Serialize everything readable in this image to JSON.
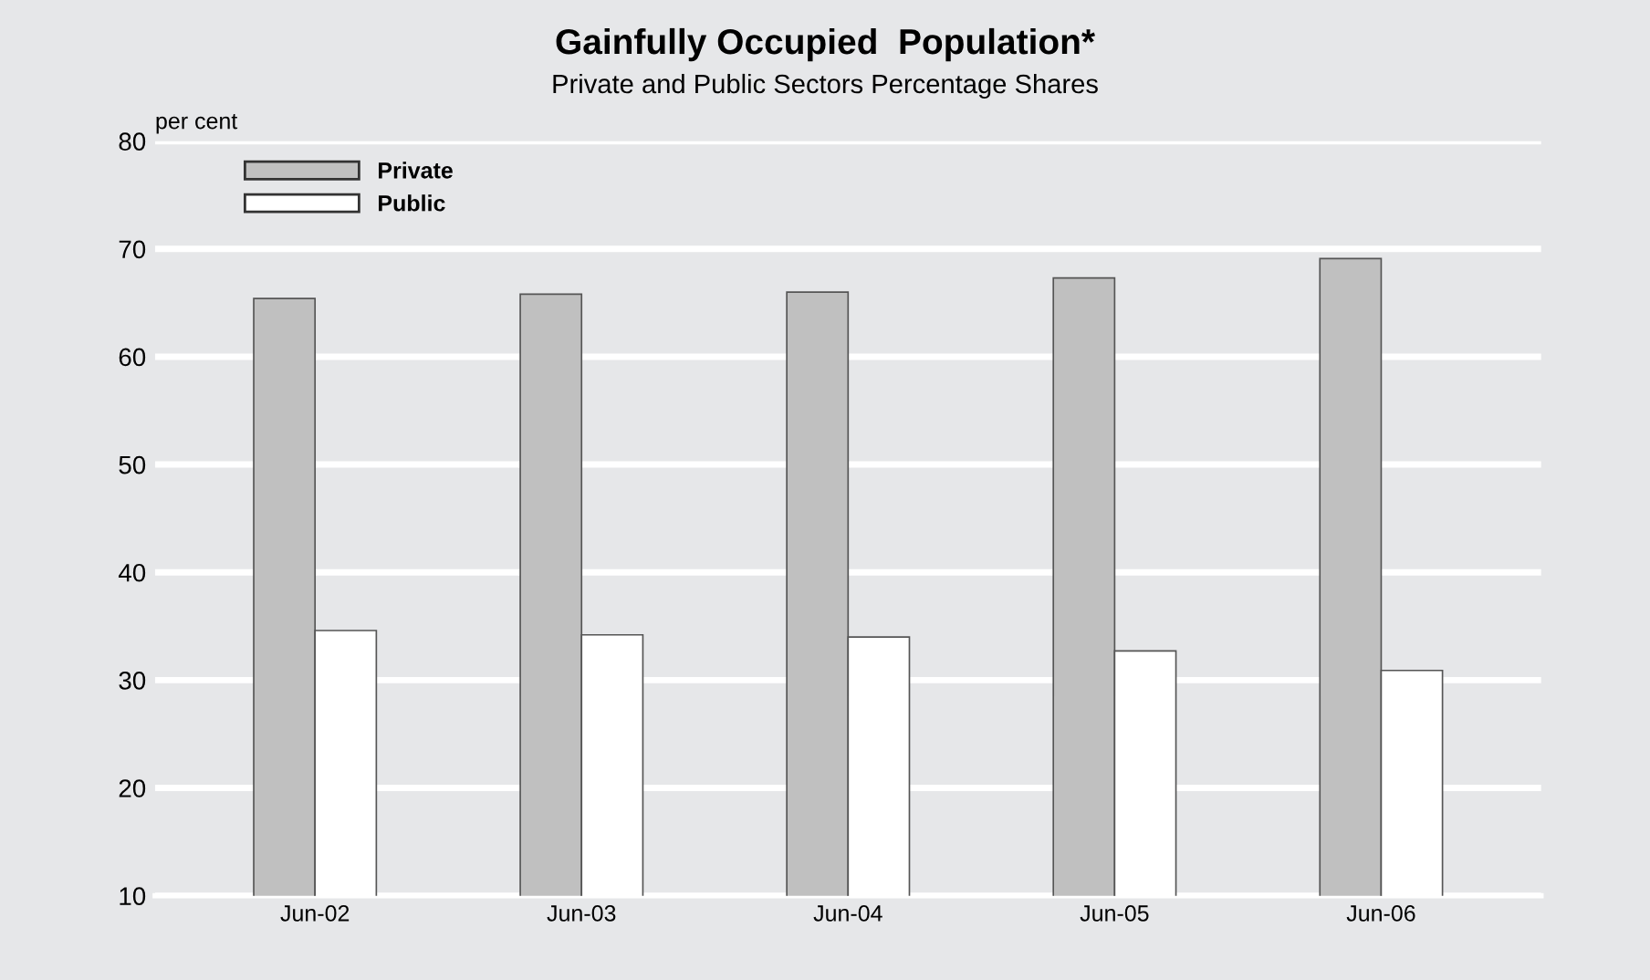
{
  "chart_data": {
    "type": "bar",
    "title": "Gainfully Occupied  Population*",
    "subtitle": "Private and Public Sectors Percentage Shares",
    "ylabel": "per cent",
    "categories": [
      "Jun-02",
      "Jun-03",
      "Jun-04",
      "Jun-05",
      "Jun-06"
    ],
    "series": [
      {
        "name": "Private",
        "color": "#c0c0c0",
        "values": [
          65.4,
          65.8,
          66.0,
          67.3,
          69.1
        ]
      },
      {
        "name": "Public",
        "color": "#ffffff",
        "values": [
          34.6,
          34.2,
          34.0,
          32.7,
          30.9
        ]
      }
    ],
    "ylim": [
      10,
      80
    ],
    "yticks": [
      10,
      20,
      30,
      40,
      50,
      60,
      70,
      80
    ],
    "grid": "y",
    "legend": "top left"
  }
}
